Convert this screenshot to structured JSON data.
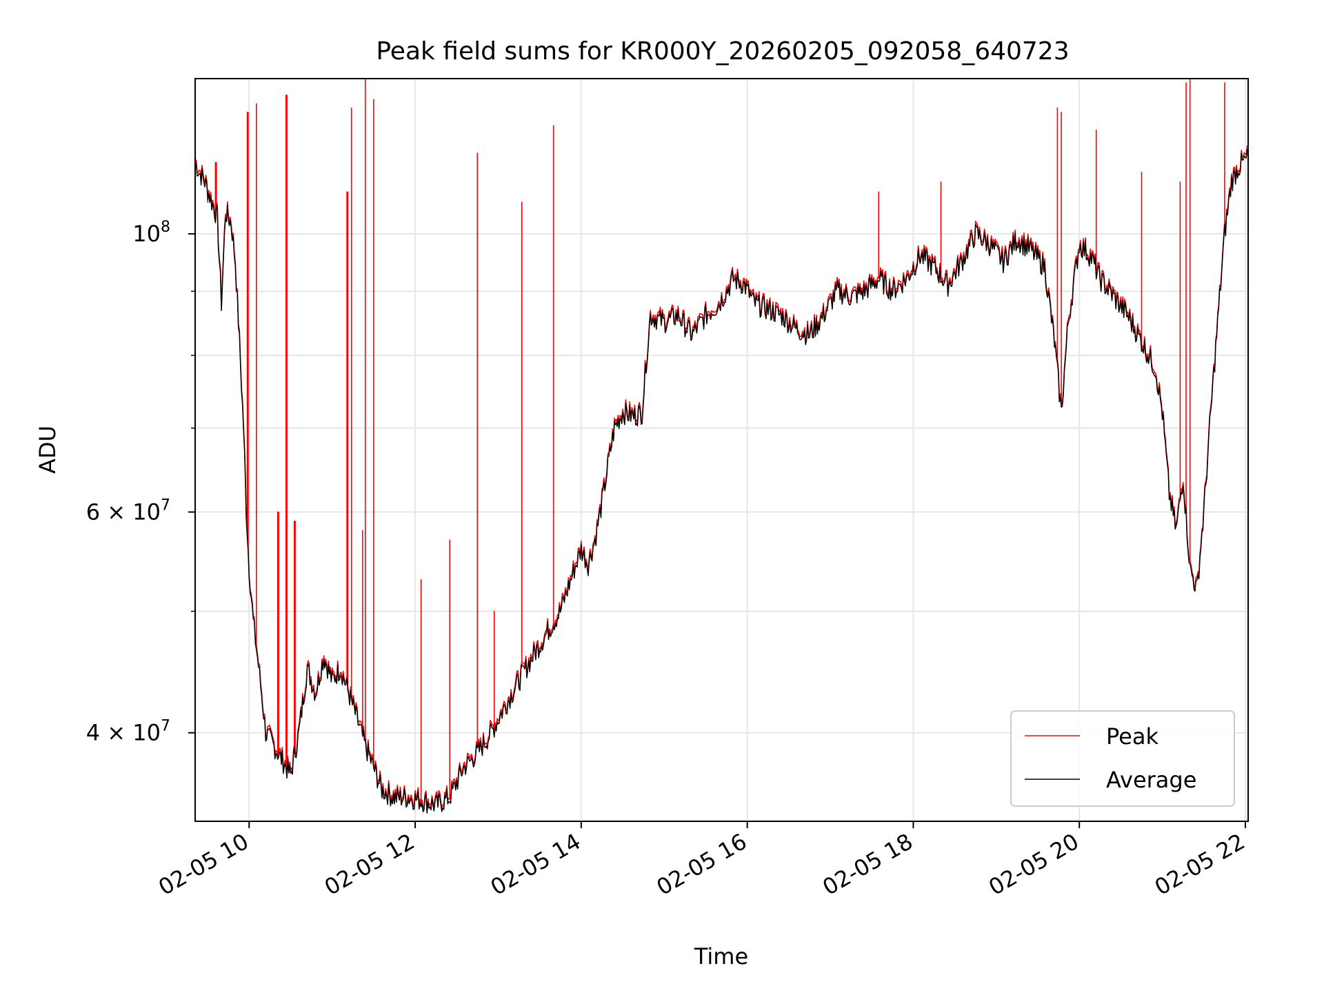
{
  "chart_data": {
    "type": "line",
    "title": "Peak field sums for KR000Y_20260205_092058_640723",
    "xlabel": "Time",
    "ylabel": "ADU",
    "yscale": "log",
    "grid": true,
    "legend_position": "lower-right",
    "x_range": [
      "2026-02-05 09:21",
      "2026-02-05 22:02"
    ],
    "ylim": [
      34000000,
      133000000
    ],
    "x_ticks": [
      {
        "time": "2026-02-05 10:00",
        "label": "02-05 10"
      },
      {
        "time": "2026-02-05 12:00",
        "label": "02-05 12"
      },
      {
        "time": "2026-02-05 14:00",
        "label": "02-05 14"
      },
      {
        "time": "2026-02-05 16:00",
        "label": "02-05 16"
      },
      {
        "time": "2026-02-05 18:00",
        "label": "02-05 18"
      },
      {
        "time": "2026-02-05 20:00",
        "label": "02-05 20"
      },
      {
        "time": "2026-02-05 22:00",
        "label": "02-05 22"
      }
    ],
    "y_ticks_major": [
      {
        "value": 40000000,
        "base": "4 × 10",
        "exp": "7"
      },
      {
        "value": 60000000,
        "base": "6 × 10",
        "exp": "7"
      },
      {
        "value": 100000000,
        "base": "10",
        "exp": "8"
      }
    ],
    "y_ticks_minor": [
      50000000,
      70000000,
      80000000,
      90000000
    ],
    "colors": {
      "peak": "#ff0000",
      "average": "#000000",
      "grid": "#e6e6e6"
    },
    "legend": [
      "Peak",
      "Average"
    ],
    "series": [
      {
        "name": "Average",
        "color": "#000000",
        "points": [
          [
            "09:21",
            114000000
          ],
          [
            "09:24",
            112000000
          ],
          [
            "09:28",
            110000000
          ],
          [
            "09:33",
            106000000
          ],
          [
            "09:37",
            103000000
          ],
          [
            "09:40",
            88000000
          ],
          [
            "09:43",
            104000000
          ],
          [
            "09:47",
            102000000
          ],
          [
            "09:50",
            95000000
          ],
          [
            "09:53",
            82000000
          ],
          [
            "09:56",
            70000000
          ],
          [
            "09:58",
            60000000
          ],
          [
            "10:00",
            54000000
          ],
          [
            "10:03",
            49000000
          ],
          [
            "10:06",
            46000000
          ],
          [
            "10:09",
            43000000
          ],
          [
            "10:12",
            40000000
          ],
          [
            "10:18",
            39000000
          ],
          [
            "10:24",
            38000000
          ],
          [
            "10:30",
            37000000
          ],
          [
            "10:36",
            40000000
          ],
          [
            "10:42",
            45000000
          ],
          [
            "10:48",
            43000000
          ],
          [
            "10:54",
            46000000
          ],
          [
            "11:00",
            44000000
          ],
          [
            "11:06",
            45000000
          ],
          [
            "11:12",
            43000000
          ],
          [
            "11:18",
            41000000
          ],
          [
            "11:24",
            39000000
          ],
          [
            "11:30",
            37500000
          ],
          [
            "11:36",
            36000000
          ],
          [
            "11:45",
            35500000
          ],
          [
            "11:55",
            35500000
          ],
          [
            "12:05",
            35300000
          ],
          [
            "12:15",
            35000000
          ],
          [
            "12:25",
            35500000
          ],
          [
            "12:35",
            37500000
          ],
          [
            "12:45",
            38500000
          ],
          [
            "12:55",
            40000000
          ],
          [
            "13:05",
            42000000
          ],
          [
            "13:15",
            44000000
          ],
          [
            "13:25",
            46000000
          ],
          [
            "13:35",
            48000000
          ],
          [
            "13:45",
            50000000
          ],
          [
            "13:55",
            54000000
          ],
          [
            "14:00",
            56000000
          ],
          [
            "14:05",
            54500000
          ],
          [
            "14:10",
            57000000
          ],
          [
            "14:15",
            61000000
          ],
          [
            "14:20",
            66000000
          ],
          [
            "14:24",
            70000000
          ],
          [
            "14:30",
            72000000
          ],
          [
            "14:38",
            71500000
          ],
          [
            "14:44",
            72000000
          ],
          [
            "14:47",
            79000000
          ],
          [
            "14:50",
            86000000
          ],
          [
            "15:00",
            85000000
          ],
          [
            "15:10",
            86000000
          ],
          [
            "15:20",
            83000000
          ],
          [
            "15:30",
            86000000
          ],
          [
            "15:40",
            88000000
          ],
          [
            "15:50",
            92000000
          ],
          [
            "15:58",
            91000000
          ],
          [
            "16:05",
            88000000
          ],
          [
            "16:15",
            87000000
          ],
          [
            "16:25",
            86000000
          ],
          [
            "16:35",
            84000000
          ],
          [
            "16:45",
            83000000
          ],
          [
            "16:55",
            86000000
          ],
          [
            "17:05",
            90000000
          ],
          [
            "17:15",
            89000000
          ],
          [
            "17:25",
            90000000
          ],
          [
            "17:35",
            92000000
          ],
          [
            "17:45",
            90000000
          ],
          [
            "17:55",
            92000000
          ],
          [
            "18:05",
            96000000
          ],
          [
            "18:15",
            94000000
          ],
          [
            "18:25",
            91000000
          ],
          [
            "18:35",
            95000000
          ],
          [
            "18:45",
            100000000
          ],
          [
            "18:55",
            98000000
          ],
          [
            "19:05",
            95000000
          ],
          [
            "19:15",
            99000000
          ],
          [
            "19:25",
            97000000
          ],
          [
            "19:35",
            94000000
          ],
          [
            "19:42",
            82000000
          ],
          [
            "19:47",
            72000000
          ],
          [
            "19:52",
            85000000
          ],
          [
            "20:00",
            98000000
          ],
          [
            "20:08",
            96000000
          ],
          [
            "20:15",
            92000000
          ],
          [
            "20:25",
            89000000
          ],
          [
            "20:35",
            86000000
          ],
          [
            "20:45",
            82000000
          ],
          [
            "20:55",
            78000000
          ],
          [
            "21:00",
            72000000
          ],
          [
            "21:05",
            62000000
          ],
          [
            "21:10",
            58000000
          ],
          [
            "21:15",
            64000000
          ],
          [
            "21:20",
            54000000
          ],
          [
            "21:25",
            52000000
          ],
          [
            "21:30",
            60000000
          ],
          [
            "21:35",
            72000000
          ],
          [
            "21:40",
            85000000
          ],
          [
            "21:45",
            100000000
          ],
          [
            "21:50",
            110000000
          ],
          [
            "21:55",
            113000000
          ],
          [
            "22:02",
            115000000
          ]
        ]
      },
      {
        "name": "Peak",
        "color": "#ff0000",
        "baseline_note": "follows Average with narrow spikes",
        "spikes": [
          [
            "09:30",
            106000000
          ],
          [
            "09:36",
            114000000
          ],
          [
            "09:59",
            125000000
          ],
          [
            "10:05",
            127000000
          ],
          [
            "10:21",
            60000000
          ],
          [
            "10:27",
            129000000
          ],
          [
            "10:33",
            59000000
          ],
          [
            "11:11",
            108000000
          ],
          [
            "11:14",
            126000000
          ],
          [
            "11:22",
            58000000
          ],
          [
            "11:24",
            133000000
          ],
          [
            "11:30",
            128000000
          ],
          [
            "12:04",
            53000000
          ],
          [
            "12:25",
            57000000
          ],
          [
            "12:45",
            116000000
          ],
          [
            "12:57",
            50000000
          ],
          [
            "13:17",
            106000000
          ],
          [
            "13:40",
            122000000
          ],
          [
            "17:35",
            108000000
          ],
          [
            "18:20",
            110000000
          ],
          [
            "19:44",
            126000000
          ],
          [
            "19:47",
            125000000
          ],
          [
            "20:12",
            121000000
          ],
          [
            "20:45",
            112000000
          ],
          [
            "21:13",
            110000000
          ],
          [
            "21:17",
            132000000
          ],
          [
            "21:20",
            133000000
          ],
          [
            "21:45",
            132000000
          ]
        ]
      }
    ]
  }
}
